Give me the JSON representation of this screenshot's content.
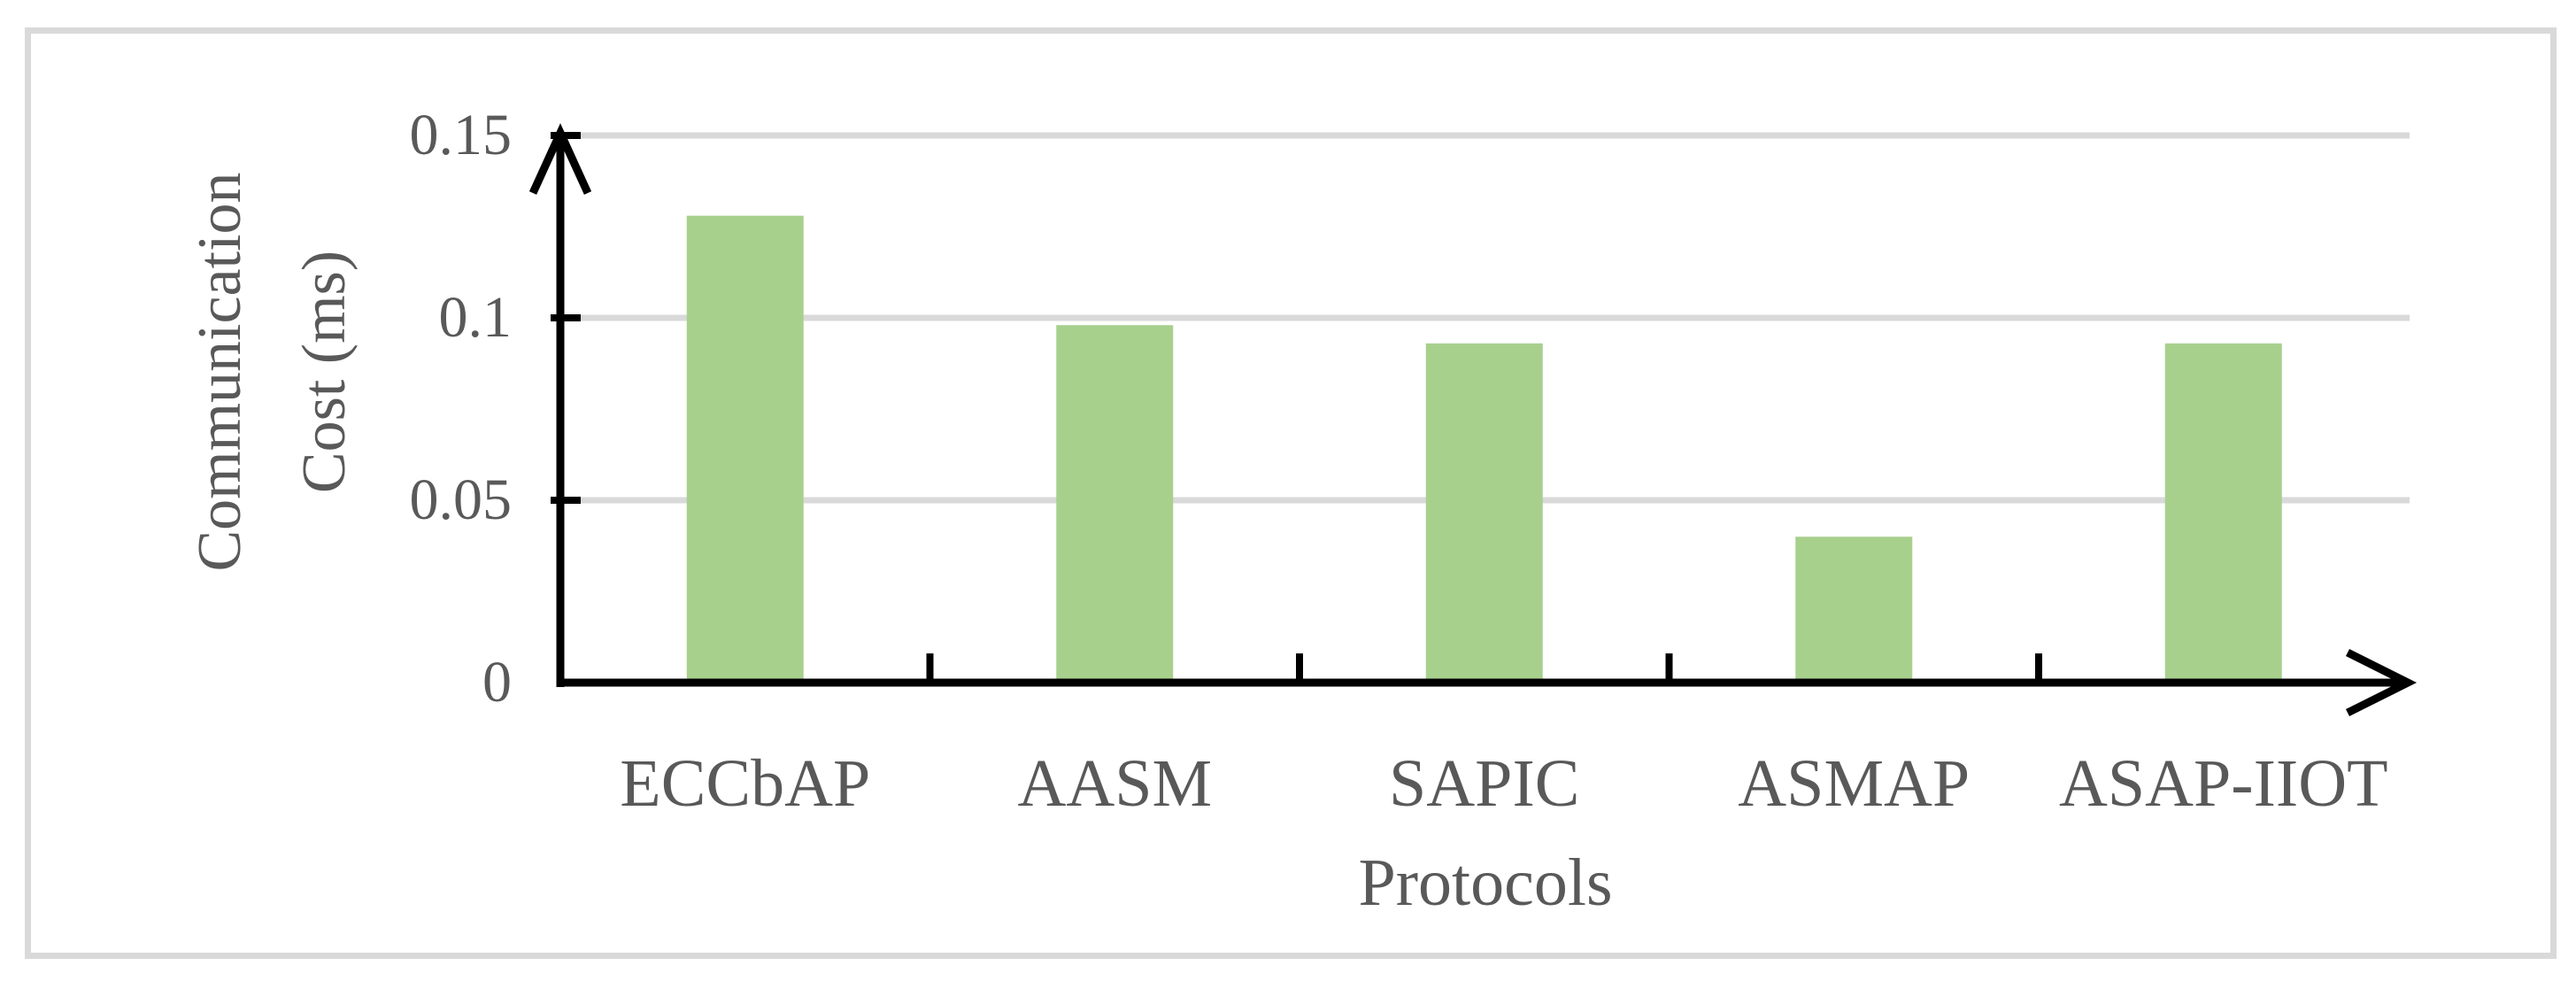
{
  "chart_data": {
    "type": "bar",
    "title": "",
    "categories": [
      "ECCbAP",
      "AASM",
      "SAPIC",
      "ASMAP",
      "ASAP-IIOT"
    ],
    "values": [
      0.128,
      0.098,
      0.093,
      0.04,
      0.093
    ],
    "xlabel": "Protocols",
    "ylabel": "Communication Cost (ms)",
    "ylabel_lines": [
      "Communication",
      "Cost (ms)"
    ],
    "yticks": [
      {
        "value": 0,
        "label": "0"
      },
      {
        "value": 0.05,
        "label": "0.05"
      },
      {
        "value": 0.1,
        "label": "0.1"
      },
      {
        "value": 0.15,
        "label": "0.15"
      }
    ],
    "ylim": [
      0,
      0.15
    ],
    "grid": "horizontal",
    "legend": "none",
    "colors": {
      "bar_fill": "#A8D08D",
      "gridline": "#D9D9D9",
      "frame": "#D9D9D9",
      "axis": "#000000",
      "text": "#595959"
    }
  }
}
